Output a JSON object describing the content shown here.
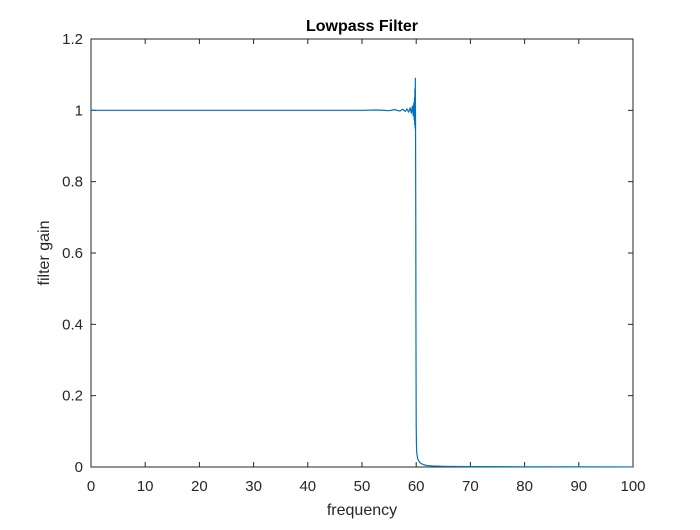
{
  "chart_data": {
    "type": "line",
    "title": "Lowpass Filter",
    "xlabel": "frequency",
    "ylabel": "filter gain",
    "xlim": [
      0,
      100
    ],
    "ylim": [
      0,
      1.2
    ],
    "xticks": [
      0,
      10,
      20,
      30,
      40,
      50,
      60,
      70,
      80,
      90,
      100
    ],
    "yticks": [
      0,
      0.2,
      0.4,
      0.6,
      0.8,
      1,
      1.2
    ],
    "xtick_labels": [
      "0",
      "10",
      "20",
      "30",
      "40",
      "50",
      "60",
      "70",
      "80",
      "90",
      "100"
    ],
    "ytick_labels": [
      "0",
      "0.2",
      "0.4",
      "0.6",
      "0.8",
      "1",
      "1.2"
    ],
    "grid": false,
    "box": true,
    "series": [
      {
        "color": "#0072bd",
        "x": [
          0,
          10,
          20,
          30,
          40,
          45,
          50,
          53,
          55,
          56,
          57,
          57.5,
          58,
          58.3,
          58.6,
          58.9,
          59.1,
          59.3,
          59.45,
          59.55,
          59.62,
          59.68,
          59.72,
          59.76,
          59.8,
          59.84,
          59.88,
          59.92,
          59.96,
          60.0,
          60.05,
          60.1,
          60.2,
          60.3,
          60.5,
          60.7,
          61.0,
          61.5,
          62,
          63,
          65,
          70,
          80,
          90,
          100
        ],
        "y": [
          1.0,
          1.0,
          1.0,
          1.0,
          1.0,
          1.0,
          1.0,
          1.001,
          0.999,
          1.002,
          0.998,
          1.003,
          0.997,
          1.004,
          0.995,
          1.007,
          0.992,
          1.012,
          0.985,
          1.02,
          0.975,
          1.035,
          0.96,
          1.06,
          0.95,
          1.09,
          0.96,
          0.7,
          0.35,
          0.12,
          0.06,
          0.04,
          0.03,
          0.022,
          0.016,
          0.012,
          0.009,
          0.006,
          0.004,
          0.003,
          0.002,
          0.001,
          0.0005,
          0.0003,
          0.0002
        ]
      }
    ]
  }
}
